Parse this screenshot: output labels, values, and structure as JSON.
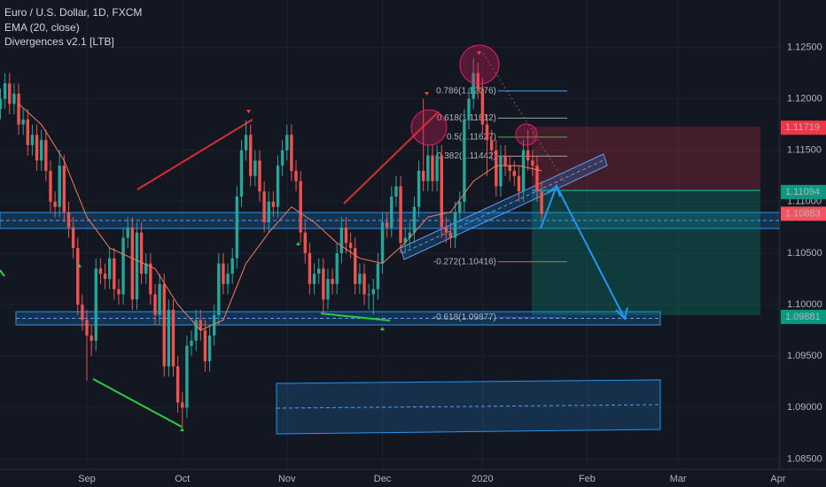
{
  "chart_data": {
    "type": "candlestick",
    "title": "Euro / U.S. Dollar, 1D, FXCM",
    "indicators": [
      "Divergences v2.1 [LTB]"
    ],
    "up_color": "#26a69a",
    "down_color": "#ef5350",
    "grid": true,
    "xlim": [
      -19.1,
      152.4
    ],
    "xticks": [
      {
        "value": 0,
        "label": "Sep"
      },
      {
        "value": 21,
        "label": "Oct"
      },
      {
        "value": 44,
        "label": "Nov"
      },
      {
        "value": 65,
        "label": "Dec"
      },
      {
        "value": 87,
        "label": "2020"
      },
      {
        "value": 110,
        "label": "Feb"
      },
      {
        "value": 130,
        "label": "Mar"
      },
      {
        "value": 152,
        "label": "Apr"
      }
    ],
    "ylim": [
      1.084,
      1.1296
    ],
    "yticks": [
      {
        "value": 1.085,
        "label": "1.08500"
      },
      {
        "value": 1.09,
        "label": "1.09000"
      },
      {
        "value": 1.095,
        "label": "1.09500"
      },
      {
        "value": 1.1,
        "label": "1.10000"
      },
      {
        "value": 1.105,
        "label": "1.10500"
      },
      {
        "value": 1.11,
        "label": "1.11000"
      },
      {
        "value": 1.115,
        "label": "1.11500"
      },
      {
        "value": 1.12,
        "label": "1.12000"
      },
      {
        "value": 1.125,
        "label": "1.12500"
      }
    ],
    "x": [
      -19,
      -18,
      -17,
      -16,
      -15,
      -14,
      -13,
      -12,
      -11,
      -10,
      -9,
      -8,
      -7,
      -6,
      -5,
      -4,
      -3,
      -2,
      -1,
      0,
      1,
      2,
      3,
      4,
      5,
      6,
      7,
      8,
      9,
      10,
      11,
      12,
      13,
      14,
      15,
      16,
      17,
      18,
      19,
      20,
      21,
      22,
      23,
      24,
      25,
      26,
      27,
      28,
      29,
      30,
      31,
      32,
      33,
      34,
      35,
      36,
      37,
      38,
      39,
      40,
      41,
      42,
      43,
      44,
      45,
      46,
      47,
      48,
      49,
      50,
      51,
      52,
      53,
      54,
      55,
      56,
      57,
      58,
      59,
      60,
      61,
      62,
      63,
      64,
      65,
      66,
      67,
      68,
      69,
      70,
      71,
      72,
      73,
      74,
      75,
      76,
      77,
      78,
      79,
      80,
      81,
      82,
      83,
      84,
      85,
      86,
      87,
      88,
      89,
      90,
      91,
      92,
      93,
      94,
      95,
      96,
      97,
      98,
      99,
      100
    ],
    "open": [
      1.119,
      1.12,
      1.1215,
      1.1195,
      1.1205,
      1.1175,
      1.118,
      1.1155,
      1.1165,
      1.114,
      1.116,
      1.113,
      1.11,
      1.1095,
      1.1135,
      1.109,
      1.1075,
      1.1055,
      1.1,
      1.0985,
      1.097,
      1.0965,
      1.1035,
      1.103,
      1.1025,
      1.1045,
      1.1015,
      1.101,
      1.1065,
      1.1075,
      1.1005,
      1.107,
      1.103,
      1.104,
      1.101,
      1.099,
      1.102,
      1.094,
      1.0995,
      1.094,
      1.0905,
      1.09,
      1.096,
      1.0965,
      1.0985,
      1.0975,
      1.0945,
      1.097,
      1.099,
      1.104,
      1.102,
      1.103,
      1.1045,
      1.1105,
      1.115,
      1.1165,
      1.1125,
      1.114,
      1.111,
      1.108,
      1.11,
      1.1095,
      1.1135,
      1.115,
      1.1165,
      1.113,
      1.112,
      1.107,
      1.105,
      1.102,
      1.103,
      1.1035,
      1.1005,
      1.1025,
      1.102,
      1.105,
      1.1075,
      1.106,
      1.1055,
      1.102,
      1.103,
      1.101,
      1.101,
      1.1015,
      1.104,
      1.108,
      1.1075,
      1.1105,
      1.1115,
      1.106,
      1.1065,
      1.107,
      1.1095,
      1.113,
      1.112,
      1.1145,
      1.112,
      1.1145,
      1.1075,
      1.107,
      1.1065,
      1.109,
      1.11,
      1.118,
      1.12,
      1.1225,
      1.121,
      1.1175,
      1.116,
      1.115,
      1.1115,
      1.1145,
      1.1135,
      1.113,
      1.1125,
      1.111,
      1.115,
      1.114,
      1.1135,
      1.111
    ],
    "high": [
      1.121,
      1.1225,
      1.1225,
      1.1215,
      1.1215,
      1.119,
      1.119,
      1.1175,
      1.1175,
      1.117,
      1.117,
      1.114,
      1.111,
      1.115,
      1.1145,
      1.11,
      1.1085,
      1.1065,
      1.101,
      1.0995,
      1.098,
      1.1045,
      1.1045,
      1.104,
      1.1055,
      1.1055,
      1.1025,
      1.1075,
      1.1085,
      1.1085,
      1.108,
      1.108,
      1.105,
      1.105,
      1.102,
      1.103,
      1.103,
      1.1005,
      1.1005,
      1.095,
      1.0915,
      1.097,
      1.0975,
      1.0995,
      1.0995,
      1.0985,
      1.098,
      1.1,
      1.105,
      1.105,
      1.104,
      1.1055,
      1.1115,
      1.116,
      1.1179,
      1.1175,
      1.115,
      1.115,
      1.112,
      1.111,
      1.111,
      1.1145,
      1.116,
      1.1175,
      1.1175,
      1.114,
      1.113,
      1.108,
      1.106,
      1.104,
      1.1045,
      1.1045,
      1.1035,
      1.1035,
      1.106,
      1.1085,
      1.1085,
      1.107,
      1.1065,
      1.104,
      1.104,
      1.102,
      1.1025,
      1.105,
      1.109,
      1.109,
      1.1115,
      1.1125,
      1.1125,
      1.1075,
      1.108,
      1.1105,
      1.114,
      1.12,
      1.1155,
      1.1155,
      1.1155,
      1.1155,
      1.1085,
      1.108,
      1.11,
      1.111,
      1.119,
      1.121,
      1.1239,
      1.1235,
      1.122,
      1.1185,
      1.117,
      1.116,
      1.1155,
      1.1155,
      1.1145,
      1.114,
      1.1135,
      1.116,
      1.117,
      1.115,
      1.1145,
      1.112
    ],
    "low": [
      1.118,
      1.119,
      1.1185,
      1.1185,
      1.1165,
      1.1165,
      1.1145,
      1.1145,
      1.113,
      1.113,
      1.112,
      1.109,
      1.1085,
      1.1085,
      1.108,
      1.1065,
      1.1045,
      1.099,
      1.0975,
      1.0926,
      1.095,
      1.0955,
      1.102,
      1.1015,
      1.1015,
      1.1005,
      1.1,
      1.1,
      1.1055,
      1.0995,
      1.0995,
      1.102,
      1.102,
      1.1,
      1.098,
      1.098,
      1.093,
      1.093,
      1.093,
      1.0895,
      1.0879,
      1.089,
      1.095,
      1.0955,
      1.0965,
      1.0935,
      1.0935,
      1.096,
      1.098,
      1.101,
      1.101,
      1.102,
      1.1035,
      1.1095,
      1.114,
      1.1115,
      1.1115,
      1.11,
      1.107,
      1.107,
      1.1085,
      1.1085,
      1.1125,
      1.114,
      1.112,
      1.111,
      1.106,
      1.104,
      1.101,
      1.101,
      1.102,
      1.099,
      1.0995,
      1.101,
      1.101,
      1.104,
      1.105,
      1.1045,
      1.101,
      1.101,
      1.1,
      1.0995,
      1.099,
      1.1005,
      1.103,
      1.1065,
      1.1065,
      1.1095,
      1.105,
      1.105,
      1.1055,
      1.106,
      1.1085,
      1.111,
      1.111,
      1.111,
      1.111,
      1.1065,
      1.106,
      1.1055,
      1.1055,
      1.108,
      1.109,
      1.117,
      1.119,
      1.12,
      1.1165,
      1.1125,
      1.114,
      1.1105,
      1.1105,
      1.1125,
      1.112,
      1.1115,
      1.11,
      1.11,
      1.113,
      1.1125,
      1.11,
      1.1083
    ],
    "close": [
      1.12,
      1.1215,
      1.1195,
      1.1205,
      1.1175,
      1.118,
      1.1155,
      1.1165,
      1.114,
      1.116,
      1.113,
      1.11,
      1.1095,
      1.1135,
      1.109,
      1.1075,
      1.1055,
      1.1,
      1.0985,
      1.097,
      1.0965,
      1.1035,
      1.103,
      1.1025,
      1.1045,
      1.1015,
      1.101,
      1.1065,
      1.1075,
      1.1005,
      1.107,
      1.103,
      1.104,
      1.101,
      1.099,
      1.102,
      1.094,
      1.0995,
      1.094,
      1.0905,
      1.09,
      1.096,
      1.0965,
      1.0985,
      1.0975,
      1.0945,
      1.097,
      1.099,
      1.104,
      1.102,
      1.103,
      1.1045,
      1.1105,
      1.115,
      1.1165,
      1.1125,
      1.114,
      1.111,
      1.108,
      1.11,
      1.1095,
      1.1135,
      1.115,
      1.1165,
      1.113,
      1.112,
      1.107,
      1.105,
      1.102,
      1.103,
      1.1035,
      1.1005,
      1.1025,
      1.102,
      1.105,
      1.1075,
      1.106,
      1.1055,
      1.102,
      1.103,
      1.101,
      1.101,
      1.1015,
      1.104,
      1.108,
      1.1075,
      1.1105,
      1.1115,
      1.106,
      1.1065,
      1.107,
      1.1095,
      1.113,
      1.112,
      1.1145,
      1.112,
      1.1145,
      1.1075,
      1.107,
      1.1065,
      1.109,
      1.11,
      1.118,
      1.12,
      1.1225,
      1.121,
      1.1175,
      1.116,
      1.115,
      1.1115,
      1.1145,
      1.1135,
      1.113,
      1.1125,
      1.111,
      1.115,
      1.114,
      1.1135,
      1.111,
      1.1088
    ],
    "overlays": [
      {
        "name": "EMA (20, close)",
        "color": "#f57c5f",
        "x": [
          -15,
          -10,
          -5,
          0,
          5,
          10,
          15,
          20,
          25,
          30,
          35,
          40,
          45,
          50,
          55,
          60,
          65,
          70,
          75,
          80,
          85,
          90,
          95,
          100
        ],
        "values": [
          1.1195,
          1.1175,
          1.114,
          1.1085,
          1.1055,
          1.1045,
          1.1035,
          1.1,
          1.0975,
          1.0985,
          1.104,
          1.107,
          1.1095,
          1.108,
          1.106,
          1.1045,
          1.104,
          1.106,
          1.1085,
          1.109,
          1.112,
          1.1135,
          1.1135,
          1.113
        ]
      }
    ],
    "fib_levels": [
      {
        "value": 1.12076,
        "label": "0.786(1.12076)",
        "color": "#5b9cf6"
      },
      {
        "value": 1.11812,
        "label": "0.618(1.11812)",
        "color": "#8fa89a"
      },
      {
        "value": 1.11627,
        "label": "0.5(1.11627)",
        "color": "#4caf50"
      },
      {
        "value": 1.11442,
        "label": "0.382(1.11442)",
        "color": "#9e9e9e"
      },
      {
        "value": 1.10416,
        "label": "-0.272(1.10416)",
        "color": "#f7525f"
      },
      {
        "value": 1.09877,
        "label": "-0.618(1.09877)",
        "color": "#9c27b0"
      }
    ],
    "price_tags": [
      {
        "value": 1.11719,
        "color": "#f23645"
      },
      {
        "value": 1.11094,
        "color": "#089981"
      },
      {
        "value": 1.10883,
        "color": "#f7525f"
      },
      {
        "value": 1.09881,
        "color": "#089981"
      }
    ]
  }
}
